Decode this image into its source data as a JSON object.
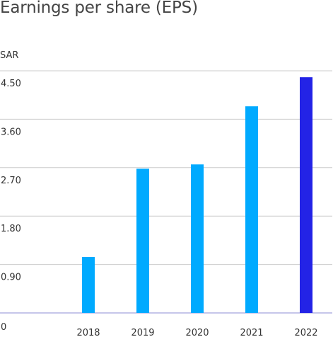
{
  "chart_data": {
    "type": "bar",
    "title": "Earnings per share (EPS)",
    "unit": "SAR",
    "categories": [
      "2018",
      "2019",
      "2020",
      "2021",
      "2022"
    ],
    "values": [
      1.04,
      2.68,
      2.76,
      3.84,
      4.38
    ],
    "ylim": [
      0,
      4.5
    ],
    "yticks": [
      0,
      0.9,
      1.8,
      2.7,
      3.6,
      4.5
    ],
    "ytick_labels": [
      "0",
      "0.90",
      "1.80",
      "2.70",
      "3.60",
      "4.50"
    ],
    "grid": true,
    "colors": {
      "bar": "#00aaff",
      "highlight": "#2323e6",
      "grid": "#cccccc",
      "baseline": "#8c8cd6"
    },
    "highlight_category": "2022"
  }
}
